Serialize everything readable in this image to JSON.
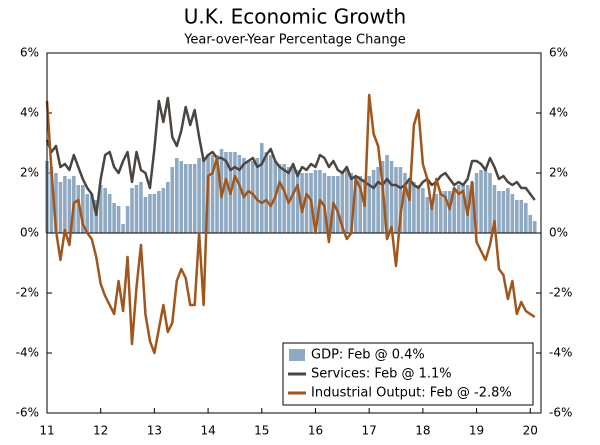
{
  "chart_data": {
    "type": "combo",
    "title": "U.K. Economic Growth",
    "subtitle": "Year-over-Year Percentage Change",
    "x": [
      11,
      11.083,
      11.167,
      11.25,
      11.333,
      11.417,
      11.5,
      11.583,
      11.667,
      11.75,
      11.833,
      11.917,
      12,
      12.083,
      12.167,
      12.25,
      12.333,
      12.417,
      12.5,
      12.583,
      12.667,
      12.75,
      12.833,
      12.917,
      13,
      13.083,
      13.167,
      13.25,
      13.333,
      13.417,
      13.5,
      13.583,
      13.667,
      13.75,
      13.833,
      13.917,
      14,
      14.083,
      14.167,
      14.25,
      14.333,
      14.417,
      14.5,
      14.583,
      14.667,
      14.75,
      14.833,
      14.917,
      15,
      15.083,
      15.167,
      15.25,
      15.333,
      15.417,
      15.5,
      15.583,
      15.667,
      15.75,
      15.833,
      15.917,
      16,
      16.083,
      16.167,
      16.25,
      16.333,
      16.417,
      16.5,
      16.583,
      16.667,
      16.75,
      16.833,
      16.917,
      17,
      17.083,
      17.167,
      17.25,
      17.333,
      17.417,
      17.5,
      17.583,
      17.667,
      17.75,
      17.833,
      17.917,
      18,
      18.083,
      18.167,
      18.25,
      18.333,
      18.417,
      18.5,
      18.583,
      18.667,
      18.75,
      18.833,
      18.917,
      19,
      19.083,
      19.167,
      19.25,
      19.333,
      19.417,
      19.5,
      19.583,
      19.667,
      19.75,
      19.833,
      19.917,
      20,
      20.083
    ],
    "series": [
      {
        "name": "GDP: Feb @ 0.4%",
        "type": "bar",
        "color": "#8ea9c1",
        "values": [
          2.4,
          2.2,
          2.0,
          1.7,
          1.9,
          1.8,
          1.9,
          1.6,
          1.6,
          1.3,
          1.3,
          1.1,
          1.6,
          1.5,
          1.3,
          1.0,
          0.9,
          0.3,
          0.9,
          1.5,
          1.6,
          1.7,
          1.2,
          1.3,
          1.3,
          1.4,
          1.5,
          1.7,
          2.2,
          2.5,
          2.4,
          2.3,
          2.3,
          2.3,
          2.5,
          2.5,
          2.6,
          2.6,
          2.6,
          2.8,
          2.7,
          2.7,
          2.7,
          2.6,
          2.5,
          2.4,
          2.4,
          2.5,
          3.0,
          2.7,
          2.6,
          2.4,
          2.3,
          2.3,
          2.2,
          2.2,
          2.1,
          2.0,
          2.0,
          2.0,
          2.1,
          2.1,
          2.0,
          1.9,
          1.9,
          1.9,
          2.0,
          2.1,
          2.0,
          1.9,
          1.9,
          1.8,
          1.9,
          2.1,
          2.2,
          2.4,
          2.6,
          2.4,
          2.2,
          2.2,
          2.0,
          1.8,
          1.7,
          1.6,
          1.5,
          1.2,
          1.1,
          1.3,
          1.4,
          1.4,
          1.4,
          1.5,
          1.6,
          1.6,
          1.6,
          1.7,
          2.0,
          2.1,
          2.1,
          2.0,
          1.6,
          1.4,
          1.4,
          1.5,
          1.3,
          1.1,
          1.1,
          1.0,
          0.6,
          0.4
        ]
      },
      {
        "name": "Services: Feb @ 1.1%",
        "type": "line",
        "color": "#4a4540",
        "values": [
          3.1,
          2.7,
          2.9,
          2.2,
          2.3,
          2.1,
          2.6,
          2.2,
          1.8,
          1.5,
          1.3,
          0.6,
          1.8,
          2.6,
          2.7,
          2.2,
          2.0,
          2.4,
          2.7,
          1.7,
          2.7,
          2.1,
          2.0,
          1.5,
          2.8,
          4.4,
          3.7,
          4.5,
          3.2,
          2.9,
          3.4,
          4.2,
          3.6,
          4.1,
          3.2,
          2.4,
          2.6,
          2.7,
          2.5,
          2.5,
          2.4,
          2.1,
          2.2,
          2.1,
          2.3,
          2.4,
          2.5,
          2.2,
          2.3,
          2.6,
          2.8,
          2.4,
          2.2,
          2.1,
          2.0,
          2.3,
          1.9,
          2.2,
          2.1,
          2.3,
          2.2,
          2.6,
          2.5,
          2.2,
          2.4,
          2.1,
          2.0,
          2.2,
          1.8,
          1.9,
          1.8,
          1.7,
          1.6,
          1.5,
          1.7,
          1.6,
          1.8,
          1.6,
          1.6,
          1.5,
          1.6,
          1.8,
          1.6,
          1.5,
          1.7,
          1.8,
          1.6,
          1.7,
          1.9,
          2.0,
          1.8,
          1.6,
          1.7,
          1.6,
          1.8,
          2.4,
          2.4,
          2.3,
          2.1,
          2.5,
          2.2,
          1.8,
          1.9,
          1.7,
          1.6,
          1.7,
          1.5,
          1.5,
          1.3,
          1.1
        ]
      },
      {
        "name": "Industrial Output: Feb @ -2.8%",
        "type": "line",
        "color": "#a0561c",
        "values": [
          4.4,
          2.1,
          0.1,
          -0.9,
          0.1,
          -0.4,
          1.0,
          1.1,
          0.3,
          0.0,
          -0.2,
          -0.8,
          -1.7,
          -2.1,
          -2.4,
          -2.7,
          -1.6,
          -2.6,
          -0.8,
          -3.7,
          -1.8,
          -0.4,
          -2.7,
          -3.6,
          -4.0,
          -3.2,
          -2.4,
          -3.3,
          -3.0,
          -1.6,
          -1.2,
          -1.5,
          -2.4,
          -2.4,
          0.0,
          -2.4,
          1.9,
          2.0,
          2.5,
          1.2,
          1.8,
          1.3,
          1.9,
          1.6,
          1.2,
          1.4,
          1.3,
          1.1,
          1.0,
          1.1,
          0.9,
          1.2,
          1.7,
          1.4,
          1.0,
          1.3,
          1.6,
          0.7,
          1.3,
          1.1,
          0.0,
          1.1,
          0.9,
          -0.3,
          1.0,
          0.7,
          0.2,
          -0.2,
          0.0,
          1.8,
          1.5,
          0.9,
          4.6,
          3.3,
          2.9,
          1.6,
          -0.2,
          0.2,
          -1.1,
          0.6,
          1.6,
          1.1,
          3.6,
          4.1,
          2.3,
          1.8,
          0.8,
          1.8,
          1.3,
          1.2,
          0.8,
          1.5,
          1.3,
          1.4,
          0.6,
          1.7,
          -0.3,
          -0.6,
          -0.9,
          -0.4,
          0.4,
          -1.2,
          -1.4,
          -2.2,
          -1.6,
          -2.7,
          -2.3,
          -2.6,
          -2.7,
          -2.8
        ]
      }
    ],
    "xlim": [
      11,
      20.2
    ],
    "xticks": [
      11,
      12,
      13,
      14,
      15,
      16,
      17,
      18,
      19,
      20
    ],
    "ylim": [
      -6,
      6
    ],
    "yticks": [
      {
        "value": -6,
        "label": "-6%"
      },
      {
        "value": -4,
        "label": "-4%"
      },
      {
        "value": -2,
        "label": "-2%"
      },
      {
        "value": 0,
        "label": "0%"
      },
      {
        "value": 2,
        "label": "2%"
      },
      {
        "value": 4,
        "label": "4%"
      },
      {
        "value": 6,
        "label": "6%"
      }
    ],
    "y2lim": [
      -6,
      6
    ],
    "y2ticks": [
      {
        "value": -6,
        "label": "-6%"
      },
      {
        "value": -4,
        "label": "-4%"
      },
      {
        "value": -2,
        "label": "-2%"
      },
      {
        "value": 0,
        "label": "0%"
      },
      {
        "value": 2,
        "label": "2%"
      },
      {
        "value": 4,
        "label": "4%"
      },
      {
        "value": 6,
        "label": "6%"
      }
    ],
    "legend": "lower right"
  }
}
